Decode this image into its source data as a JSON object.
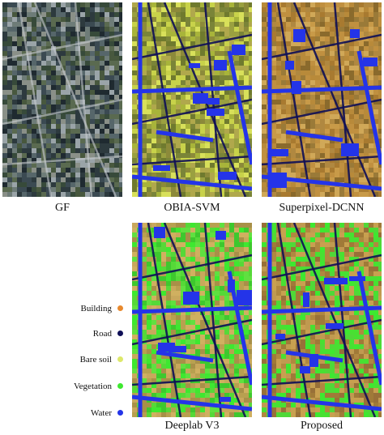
{
  "figure": {
    "panels": [
      {
        "caption": "GF",
        "style": "satellite"
      },
      {
        "caption": "OBIA-SVM",
        "style": "obia"
      },
      {
        "caption": "Superpixel-DCNN",
        "style": "superpixel"
      },
      {
        "caption": "Deeplab V3",
        "style": "deeplab"
      },
      {
        "caption": "Proposed",
        "style": "proposed"
      }
    ],
    "legend": [
      {
        "label": "Building",
        "color": "#e8892e"
      },
      {
        "label": "Road",
        "color": "#0f0f57"
      },
      {
        "label": "Bare soil",
        "color": "#dde86a"
      },
      {
        "label": "Vegetation",
        "color": "#3ee830"
      },
      {
        "label": "Water",
        "color": "#2434e8"
      }
    ]
  }
}
